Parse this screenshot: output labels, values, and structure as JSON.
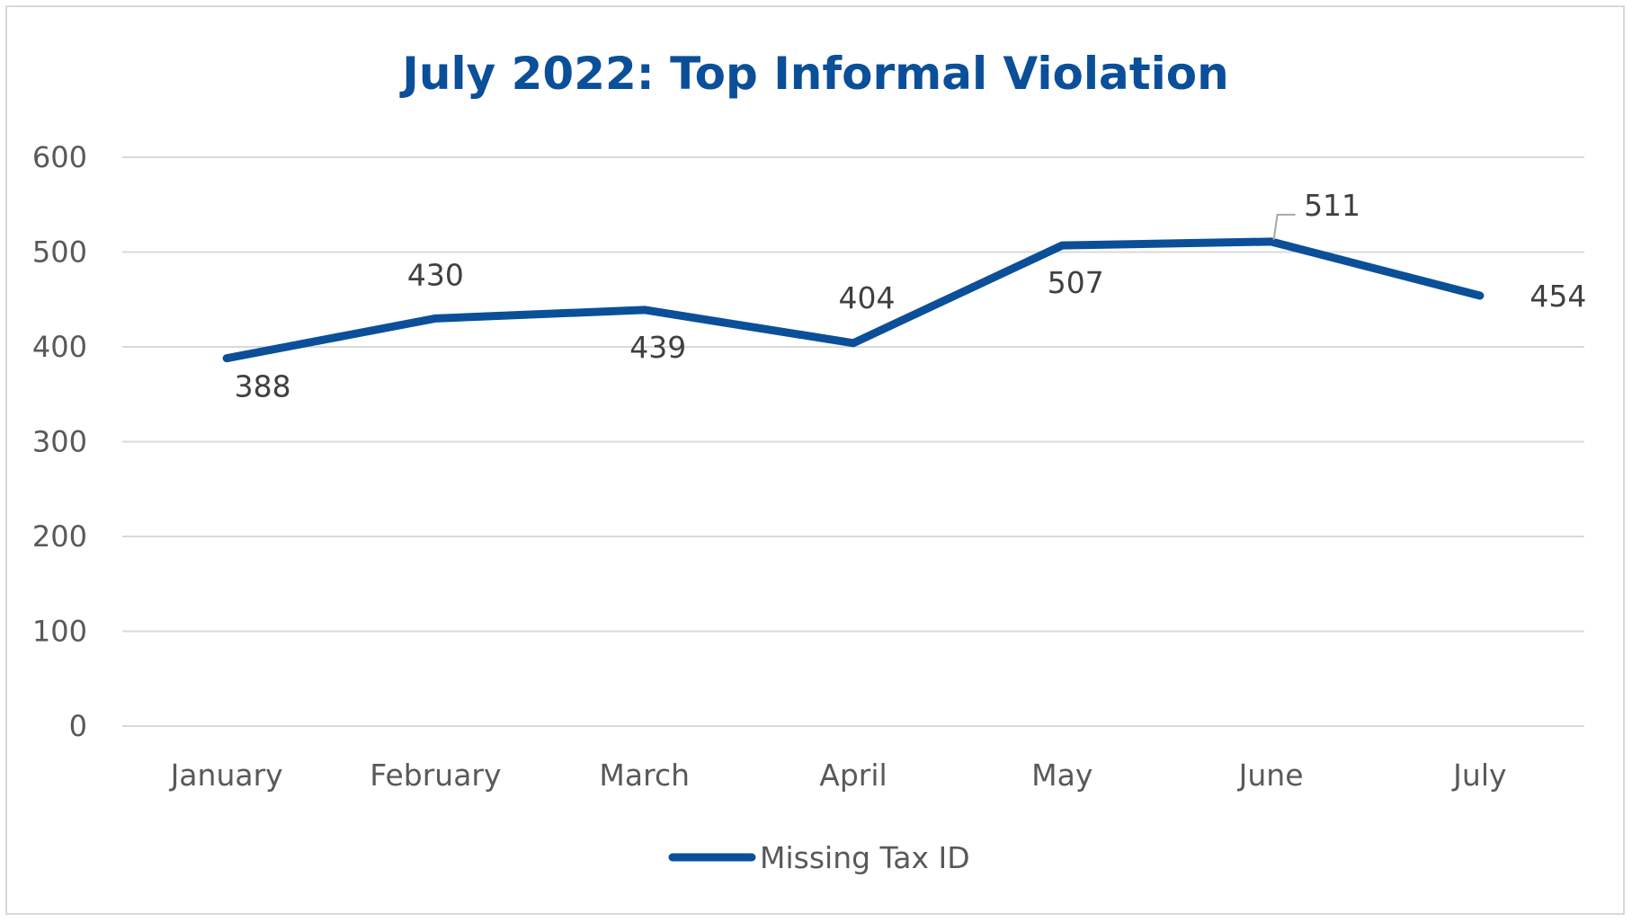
{
  "chart_data": {
    "type": "line",
    "title": "July 2022: Top Informal Violation",
    "categories": [
      "January",
      "February",
      "March",
      "April",
      "May",
      "June",
      "July"
    ],
    "series": [
      {
        "name": "Missing Tax ID",
        "values": [
          388,
          430,
          439,
          404,
          507,
          511,
          454
        ]
      }
    ],
    "ylim": [
      0,
      600
    ],
    "yticks": [
      "0",
      "100",
      "200",
      "300",
      "400",
      "500",
      "600"
    ],
    "data_labels": [
      "388",
      "430",
      "439",
      "404",
      "507",
      "511",
      "454"
    ],
    "grid": true,
    "legend": "bottom",
    "colors": {
      "series": "#0b4f99",
      "title": "#0b4f99",
      "grid": "#d9d9d9"
    }
  }
}
